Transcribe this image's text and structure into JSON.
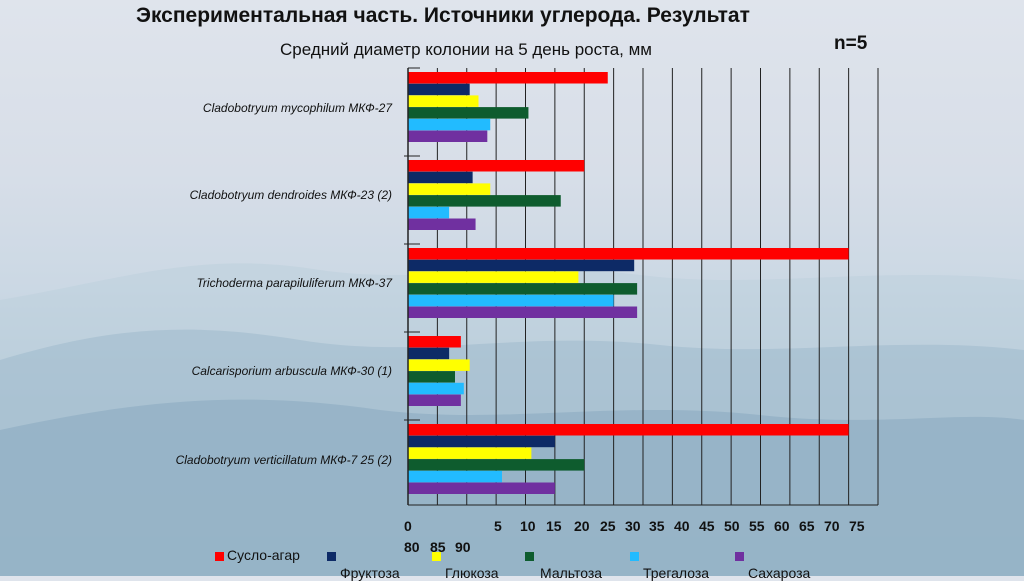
{
  "slide_title": "Экспериментальная часть. Источники углерода. Результат",
  "n_label": "n=5",
  "chart_data": {
    "type": "bar",
    "orientation": "horizontal",
    "title": "Средний диаметр колонии на 5 день роста, мм",
    "categories": [
      "Cladobotryum mycophilum МКФ-27",
      "Cladobotryum dendroides МКФ-23 (2)",
      "Trichoderma parapiluliferum МКФ-37",
      "Calcarisporium arbuscula МКФ-30 (1)",
      "Cladobotryum verticillatum МКФ-7 25 (2)"
    ],
    "series": [
      {
        "name": "Сусло-агар",
        "color": "#ff0000",
        "values": [
          34,
          30,
          75,
          9,
          75
        ]
      },
      {
        "name": "Фруктоза",
        "color": "#0d2a66",
        "values": [
          10.5,
          11,
          38.5,
          7,
          25
        ]
      },
      {
        "name": "Глюкоза",
        "color": "#ffff00",
        "values": [
          12,
          14,
          29,
          10.5,
          21
        ]
      },
      {
        "name": "Мальтоза",
        "color": "#0e5c2e",
        "values": [
          20.5,
          26,
          39,
          8,
          30
        ]
      },
      {
        "name": "Трегалоза",
        "color": "#22bbff",
        "values": [
          14,
          7,
          35,
          9.5,
          16
        ]
      },
      {
        "name": "Сахароза",
        "color": "#7030a0",
        "values": [
          13.5,
          11.5,
          39,
          9,
          25
        ]
      }
    ],
    "x_ticks": [
      "0",
      "5",
      "10",
      "15",
      "20",
      "25",
      "30",
      "35",
      "40",
      "45",
      "50",
      "55",
      "60",
      "65",
      "70",
      "75"
    ],
    "x_ticks_extra": [
      "80",
      "85",
      "90"
    ],
    "xlim": [
      0,
      80
    ],
    "grid": true,
    "legend_position": "bottom"
  }
}
